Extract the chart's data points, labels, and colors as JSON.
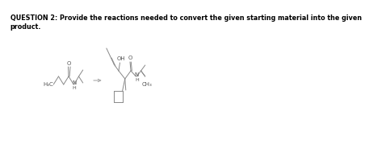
{
  "title_text": "QUESTION 2: Provide the reactions needed to convert the given starting material into the given\nproduct.",
  "title_fontsize": 5.8,
  "bg_color": "#ffffff",
  "line_color": "#888888",
  "lw": 0.7,
  "text_color": "#888888"
}
